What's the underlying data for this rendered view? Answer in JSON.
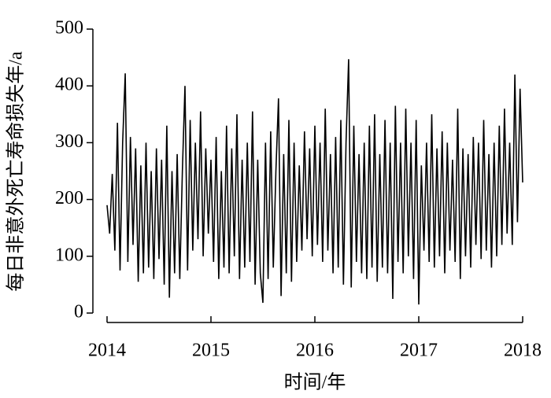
{
  "chart_data": {
    "type": "line",
    "xlabel": "时间/年",
    "ylabel": "每日非意外死亡寿命损失年/a",
    "color": "#000000",
    "xlim": [
      2014,
      2018
    ],
    "xticks": [
      2014,
      2015,
      2016,
      2017,
      2018
    ],
    "ylim": [
      0,
      500
    ],
    "yticks": [
      0,
      100,
      200,
      300,
      400,
      500
    ],
    "x": [
      2014,
      2014.025,
      2014.05,
      2014.075,
      2014.1,
      2014.125,
      2014.15,
      2014.175,
      2014.2,
      2014.225,
      2014.25,
      2014.275,
      2014.3,
      2014.325,
      2014.35,
      2014.375,
      2014.4,
      2014.425,
      2014.45,
      2014.475,
      2014.5,
      2014.525,
      2014.55,
      2014.575,
      2014.6,
      2014.625,
      2014.65,
      2014.675,
      2014.7,
      2014.725,
      2014.75,
      2014.775,
      2014.8,
      2014.825,
      2014.85,
      2014.875,
      2014.9,
      2014.925,
      2014.95,
      2014.975,
      2015,
      2015.025,
      2015.05,
      2015.075,
      2015.1,
      2015.125,
      2015.15,
      2015.175,
      2015.2,
      2015.225,
      2015.25,
      2015.275,
      2015.3,
      2015.325,
      2015.35,
      2015.375,
      2015.4,
      2015.425,
      2015.45,
      2015.475,
      2015.5,
      2015.525,
      2015.55,
      2015.575,
      2015.6,
      2015.625,
      2015.65,
      2015.675,
      2015.7,
      2015.725,
      2015.75,
      2015.775,
      2015.8,
      2015.825,
      2015.85,
      2015.875,
      2015.9,
      2015.925,
      2015.95,
      2015.975,
      2016,
      2016.025,
      2016.05,
      2016.075,
      2016.1,
      2016.125,
      2016.15,
      2016.175,
      2016.2,
      2016.225,
      2016.25,
      2016.275,
      2016.3,
      2016.325,
      2016.35,
      2016.375,
      2016.4,
      2016.425,
      2016.45,
      2016.475,
      2016.5,
      2016.525,
      2016.55,
      2016.575,
      2016.6,
      2016.625,
      2016.65,
      2016.675,
      2016.7,
      2016.725,
      2016.75,
      2016.775,
      2016.8,
      2016.825,
      2016.85,
      2016.875,
      2016.9,
      2016.925,
      2016.95,
      2016.975,
      2017,
      2017.025,
      2017.05,
      2017.075,
      2017.1,
      2017.125,
      2017.15,
      2017.175,
      2017.2,
      2017.225,
      2017.25,
      2017.275,
      2017.3,
      2017.325,
      2017.35,
      2017.375,
      2017.4,
      2017.425,
      2017.45,
      2017.475,
      2017.5,
      2017.525,
      2017.55,
      2017.575,
      2017.6,
      2017.625,
      2017.65,
      2017.675,
      2017.7,
      2017.725,
      2017.75,
      2017.775,
      2017.8,
      2017.825,
      2017.85,
      2017.875,
      2017.9,
      2017.925,
      2017.95,
      2017.975,
      2018
    ],
    "values": [
      190,
      140,
      245,
      110,
      335,
      75,
      300,
      422,
      90,
      310,
      120,
      290,
      55,
      260,
      70,
      300,
      80,
      250,
      60,
      290,
      95,
      270,
      50,
      330,
      27,
      250,
      70,
      280,
      60,
      250,
      400,
      75,
      340,
      110,
      300,
      130,
      355,
      100,
      290,
      140,
      270,
      90,
      310,
      60,
      250,
      80,
      330,
      70,
      290,
      100,
      350,
      60,
      270,
      80,
      300,
      90,
      355,
      50,
      270,
      70,
      18,
      300,
      60,
      320,
      80,
      250,
      378,
      30,
      280,
      70,
      340,
      55,
      300,
      90,
      260,
      110,
      320,
      130,
      290,
      100,
      330,
      120,
      300,
      90,
      360,
      110,
      280,
      70,
      310,
      80,
      340,
      50,
      300,
      447,
      45,
      330,
      90,
      280,
      70,
      300,
      60,
      330,
      80,
      350,
      55,
      280,
      80,
      340,
      70,
      300,
      25,
      365,
      90,
      300,
      70,
      360,
      100,
      300,
      60,
      340,
      15,
      260,
      110,
      300,
      90,
      350,
      80,
      290,
      100,
      320,
      70,
      300,
      110,
      270,
      90,
      360,
      60,
      290,
      100,
      280,
      80,
      310,
      120,
      300,
      95,
      340,
      110,
      280,
      80,
      300,
      100,
      330,
      120,
      360,
      140,
      300,
      120,
      420,
      160,
      395,
      230
    ]
  }
}
